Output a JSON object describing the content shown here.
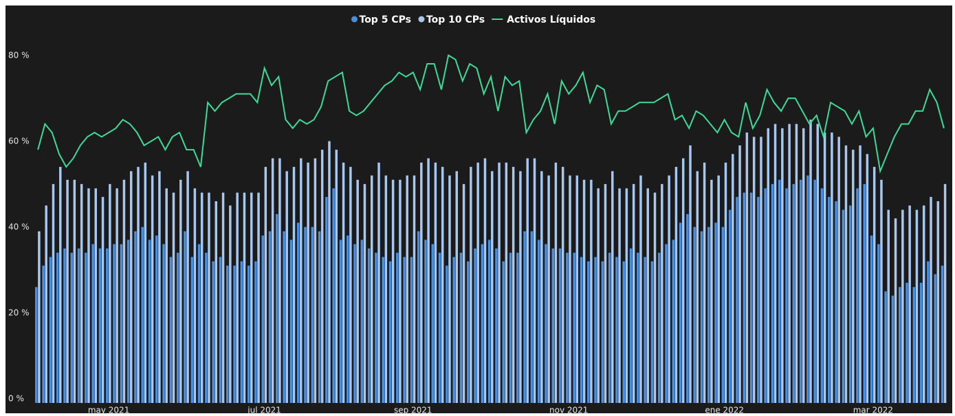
{
  "chart_data": {
    "type": "bar_line",
    "categories": [
      null,
      null,
      null,
      null,
      null,
      null,
      null,
      null,
      null,
      null,
      "may 2021",
      null,
      null,
      null,
      null,
      null,
      null,
      null,
      null,
      null,
      null,
      null,
      null,
      null,
      null,
      null,
      null,
      null,
      null,
      null,
      null,
      null,
      "jul 2021",
      null,
      null,
      null,
      null,
      null,
      null,
      null,
      null,
      null,
      null,
      null,
      null,
      null,
      null,
      null,
      null,
      null,
      null,
      null,
      null,
      "sep 2021",
      null,
      null,
      null,
      null,
      null,
      null,
      null,
      null,
      null,
      null,
      null,
      null,
      null,
      null,
      null,
      null,
      null,
      null,
      null,
      null,
      null,
      "nov 2021",
      null,
      null,
      null,
      null,
      null,
      null,
      null,
      null,
      null,
      null,
      null,
      null,
      null,
      null,
      null,
      null,
      null,
      null,
      null,
      null,
      null,
      "ene 2022",
      null,
      null,
      null,
      null,
      null,
      null,
      null,
      null,
      null,
      null,
      null,
      null,
      null,
      null,
      null,
      null,
      null,
      null,
      null,
      null,
      "mar 2022",
      null,
      null,
      null,
      null,
      null,
      null,
      null,
      null,
      null,
      null
    ],
    "series": [
      {
        "name": "Top 5 CPs",
        "color": "#4a90e2",
        "kind": "bar",
        "values": [
          27,
          32,
          34,
          35,
          36,
          35,
          36,
          35,
          37,
          36,
          36,
          37,
          37,
          38,
          40,
          41,
          38,
          39,
          37,
          34,
          35,
          40,
          34,
          37,
          35,
          33,
          34,
          32,
          32,
          33,
          32,
          33,
          39,
          40,
          44,
          40,
          38,
          42,
          41,
          41,
          40,
          48,
          50,
          38,
          39,
          37,
          38,
          36,
          35,
          34,
          33,
          35,
          34,
          34,
          40,
          38,
          37,
          35,
          32,
          34,
          35,
          33,
          36,
          37,
          38,
          36,
          33,
          35,
          35,
          40,
          40,
          38,
          37,
          36,
          36,
          35,
          35,
          34,
          33,
          34,
          33,
          35,
          34,
          33,
          36,
          35,
          34,
          33,
          35,
          37,
          38,
          42,
          44,
          41,
          40,
          41,
          42,
          41,
          45,
          48,
          49,
          49,
          48,
          50,
          51,
          52,
          50,
          51,
          52,
          53,
          52,
          50,
          48,
          47,
          45,
          46,
          50,
          51,
          39,
          37,
          26,
          25,
          27,
          28,
          27,
          28,
          33,
          30,
          32
        ]
      },
      {
        "name": "Top 10 CPs",
        "color": "#a8c7ee",
        "kind": "bar",
        "values": [
          40,
          46,
          51,
          55,
          52,
          52,
          51,
          50,
          50,
          48,
          51,
          50,
          52,
          54,
          55,
          56,
          53,
          54,
          50,
          49,
          52,
          54,
          50,
          49,
          49,
          47,
          49,
          46,
          49,
          49,
          49,
          49,
          55,
          57,
          57,
          54,
          55,
          57,
          56,
          57,
          59,
          61,
          59,
          56,
          55,
          52,
          51,
          53,
          56,
          53,
          52,
          52,
          53,
          53,
          56,
          57,
          56,
          55,
          53,
          54,
          51,
          55,
          56,
          57,
          54,
          56,
          56,
          55,
          54,
          57,
          57,
          54,
          53,
          56,
          55,
          53,
          53,
          52,
          52,
          50,
          51,
          54,
          50,
          50,
          51,
          53,
          50,
          49,
          51,
          53,
          55,
          57,
          60,
          54,
          56,
          52,
          53,
          56,
          58,
          60,
          63,
          62,
          62,
          64,
          65,
          64,
          65,
          65,
          64,
          66,
          65,
          63,
          63,
          62,
          60,
          59,
          60,
          58,
          55,
          52,
          45,
          43,
          45,
          46,
          45,
          46,
          48,
          47,
          51
        ]
      },
      {
        "name": "Activos Líquidos",
        "color": "#3ddc97",
        "kind": "line",
        "values": [
          59,
          65,
          63,
          58,
          55,
          57,
          60,
          62,
          63,
          62,
          63,
          64,
          66,
          65,
          63,
          60,
          61,
          62,
          59,
          62,
          63,
          59,
          59,
          55,
          70,
          68,
          70,
          71,
          72,
          72,
          72,
          70,
          78,
          74,
          76,
          66,
          64,
          66,
          65,
          66,
          69,
          75,
          76,
          77,
          68,
          67,
          68,
          70,
          72,
          74,
          75,
          77,
          76,
          77,
          73,
          79,
          79,
          73,
          81,
          80,
          75,
          79,
          78,
          72,
          76,
          68,
          76,
          74,
          75,
          63,
          66,
          68,
          72,
          65,
          75,
          72,
          74,
          77,
          70,
          74,
          73,
          65,
          68,
          68,
          69,
          70,
          70,
          70,
          71,
          72,
          66,
          67,
          64,
          68,
          67,
          65,
          63,
          66,
          63,
          62,
          70,
          64,
          67,
          73,
          70,
          68,
          71,
          71,
          68,
          65,
          67,
          62,
          70,
          69,
          68,
          65,
          68,
          62,
          64,
          54,
          58,
          62,
          65,
          65,
          68,
          68,
          73,
          70,
          64
        ]
      }
    ],
    "ylim": [
      0,
      91
    ],
    "yticks": [
      {
        "value": 0,
        "label": "0 %"
      },
      {
        "value": 20,
        "label": "20 %"
      },
      {
        "value": 40,
        "label": "40 %"
      },
      {
        "value": 60,
        "label": "60 %"
      },
      {
        "value": 80,
        "label": "80 %"
      }
    ],
    "legend": "top"
  }
}
